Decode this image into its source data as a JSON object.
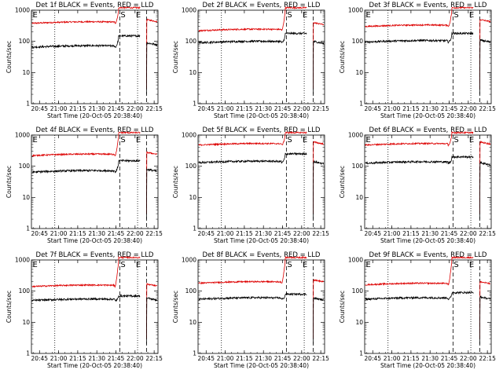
{
  "figure": {
    "rows": 3,
    "cols": 3
  },
  "chart_data": [
    {
      "type": "line",
      "title": "Det 1f BLACK = Events, RED = LLD",
      "xlabel": "Start Time (20-Oct-05 20:38:40)",
      "ylabel": "Counts/sec",
      "yscale": "log",
      "ylim": [
        1,
        1000
      ],
      "y_ticks": [
        "1",
        "10",
        "100",
        "1000"
      ],
      "x_ticks": [
        "20:45",
        "21:00",
        "21:15",
        "21:30",
        "21:45",
        "22:00",
        "22:15"
      ],
      "x_range": [
        "20:38:40",
        "22:18:00"
      ],
      "markers": [
        {
          "label": "E",
          "time": "20:39"
        },
        {
          "label": "S",
          "time": "21:48"
        },
        {
          "label": "E",
          "time": "22:00"
        }
      ],
      "dotted_lines": [
        "20:57",
        "22:02"
      ],
      "dashed_lines": [
        "21:48",
        "22:09"
      ],
      "series": [
        {
          "color": "#dd0000",
          "level": 380,
          "rise_to": 1200,
          "after": 500
        },
        {
          "color": "#000000",
          "level": 65,
          "rise_to": 150,
          "after": 90
        }
      ]
    },
    {
      "type": "line",
      "title": "Det 2f BLACK = Events, RED = LLD",
      "xlabel": "Start Time (20-Oct-05 20:38:40)",
      "ylabel": "Counts/sec",
      "yscale": "log",
      "ylim": [
        1,
        1000
      ],
      "y_ticks": [
        "1",
        "10",
        "100",
        "1000"
      ],
      "x_ticks": [
        "20:45",
        "21:00",
        "21:15",
        "21:30",
        "21:45",
        "22:00",
        "22:15"
      ],
      "x_range": [
        "20:38:40",
        "22:18:00"
      ],
      "markers": [
        {
          "label": "S",
          "time": "21:48"
        },
        {
          "label": "E",
          "time": "22:00"
        }
      ],
      "dotted_lines": [
        "20:57",
        "22:02"
      ],
      "dashed_lines": [
        "21:48",
        "22:09"
      ],
      "series": [
        {
          "color": "#dd0000",
          "level": 220,
          "rise_to": 1200,
          "after": 400
        },
        {
          "color": "#000000",
          "level": 90,
          "rise_to": 180,
          "after": 100
        }
      ]
    },
    {
      "type": "line",
      "title": "Det 3f BLACK = Events, RED = LLD",
      "xlabel": "Start Time (20-Oct-05 20:38:40)",
      "ylabel": "Counts/sec",
      "yscale": "log",
      "ylim": [
        1,
        1000
      ],
      "y_ticks": [
        "1",
        "10",
        "100",
        "1000"
      ],
      "x_ticks": [
        "20:45",
        "21:00",
        "21:15",
        "21:30",
        "21:45",
        "22:00",
        "22:15"
      ],
      "x_range": [
        "20:38:40",
        "22:18:00"
      ],
      "markers": [
        {
          "label": "E",
          "time": "20:39"
        },
        {
          "label": "S",
          "time": "21:48"
        },
        {
          "label": "E",
          "time": "22:00"
        }
      ],
      "dotted_lines": [
        "20:57",
        "22:02"
      ],
      "dashed_lines": [
        "21:48",
        "22:09"
      ],
      "series": [
        {
          "color": "#dd0000",
          "level": 300,
          "rise_to": 1200,
          "after": 500
        },
        {
          "color": "#000000",
          "level": 95,
          "rise_to": 180,
          "after": 110
        }
      ]
    },
    {
      "type": "line",
      "title": "Det 4f BLACK = Events, RED = LLD",
      "xlabel": "Start Time (20-Oct-05 20:38:40)",
      "ylabel": "Counts/sec",
      "yscale": "log",
      "ylim": [
        1,
        1000
      ],
      "y_ticks": [
        "1",
        "10",
        "100",
        "1000"
      ],
      "x_ticks": [
        "20:45",
        "21:00",
        "21:15",
        "21:30",
        "21:45",
        "22:00",
        "22:15"
      ],
      "x_range": [
        "20:38:40",
        "22:18:00"
      ],
      "markers": [
        {
          "label": "E",
          "time": "20:39"
        },
        {
          "label": "S",
          "time": "21:48"
        },
        {
          "label": "E",
          "time": "22:00"
        }
      ],
      "dotted_lines": [
        "20:57",
        "22:02"
      ],
      "dashed_lines": [
        "21:48",
        "22:09"
      ],
      "series": [
        {
          "color": "#dd0000",
          "level": 220,
          "rise_to": 1200,
          "after": 280
        },
        {
          "color": "#000000",
          "level": 65,
          "rise_to": 150,
          "after": 80
        }
      ]
    },
    {
      "type": "line",
      "title": "Det 5f BLACK = Events, RED = LLD",
      "xlabel": "Start Time (20-Oct-05 20:38:40)",
      "ylabel": "Counts/sec",
      "yscale": "log",
      "ylim": [
        1,
        1000
      ],
      "y_ticks": [
        "1",
        "10",
        "100",
        "1000"
      ],
      "x_ticks": [
        "20:45",
        "21:00",
        "21:15",
        "21:30",
        "21:45",
        "22:00",
        "22:15"
      ],
      "x_range": [
        "20:38:40",
        "22:18:00"
      ],
      "markers": [
        {
          "label": "S",
          "time": "21:48"
        },
        {
          "label": "E",
          "time": "22:00"
        }
      ],
      "dotted_lines": [
        "20:57",
        "22:02"
      ],
      "dashed_lines": [
        "21:48",
        "22:09"
      ],
      "series": [
        {
          "color": "#dd0000",
          "level": 480,
          "rise_to": 1200,
          "after": 600
        },
        {
          "color": "#000000",
          "level": 130,
          "rise_to": 250,
          "after": 140
        }
      ]
    },
    {
      "type": "line",
      "title": "Det 6f BLACK = Events, RED = LLD",
      "xlabel": "Start Time (20-Oct-05 20:38:40)",
      "ylabel": "Counts/sec",
      "yscale": "log",
      "ylim": [
        1,
        1000
      ],
      "y_ticks": [
        "1",
        "10",
        "100",
        "1000"
      ],
      "x_ticks": [
        "20:45",
        "21:00",
        "21:15",
        "21:30",
        "21:45",
        "22:00",
        "22:15"
      ],
      "x_range": [
        "20:38:40",
        "22:18:00"
      ],
      "markers": [
        {
          "label": "E",
          "time": "20:39"
        },
        {
          "label": "S",
          "time": "21:48"
        },
        {
          "label": "E",
          "time": "22:00"
        }
      ],
      "dotted_lines": [
        "20:57",
        "22:02"
      ],
      "dashed_lines": [
        "21:48",
        "22:09"
      ],
      "series": [
        {
          "color": "#dd0000",
          "level": 480,
          "rise_to": 1200,
          "after": 600
        },
        {
          "color": "#000000",
          "level": 125,
          "rise_to": 200,
          "after": 130
        }
      ]
    },
    {
      "type": "line",
      "title": "Det 7f BLACK = Events, RED = LLD",
      "xlabel": "Start Time (20-Oct-05 20:38:40)",
      "ylabel": "Counts/sec",
      "yscale": "log",
      "ylim": [
        1,
        1000
      ],
      "y_ticks": [
        "1",
        "10",
        "100",
        "1000"
      ],
      "x_ticks": [
        "20:45",
        "21:00",
        "21:15",
        "21:30",
        "21:45",
        "22:00",
        "22:15"
      ],
      "x_range": [
        "20:38:40",
        "22:18:00"
      ],
      "markers": [
        {
          "label": "E",
          "time": "20:39"
        },
        {
          "label": "S",
          "time": "21:48"
        },
        {
          "label": "E",
          "time": "22:00"
        }
      ],
      "dotted_lines": [
        "20:57",
        "22:02"
      ],
      "dashed_lines": [
        "21:48",
        "22:09"
      ],
      "series": [
        {
          "color": "#dd0000",
          "level": 140,
          "rise_to": 1200,
          "after": 170
        },
        {
          "color": "#000000",
          "level": 50,
          "rise_to": 70,
          "after": 60
        }
      ]
    },
    {
      "type": "line",
      "title": "Det 8f BLACK = Events, RED = LLD",
      "xlabel": "Start Time (20-Oct-05 20:38:40)",
      "ylabel": "Counts/sec",
      "yscale": "log",
      "ylim": [
        1,
        1000
      ],
      "y_ticks": [
        "1",
        "10",
        "100",
        "1000"
      ],
      "x_ticks": [
        "20:45",
        "21:00",
        "21:15",
        "21:30",
        "21:45",
        "22:00",
        "22:15"
      ],
      "x_range": [
        "20:38:40",
        "22:18:00"
      ],
      "markers": [
        {
          "label": "S",
          "time": "21:48"
        },
        {
          "label": "E",
          "time": "22:00"
        }
      ],
      "dotted_lines": [
        "20:57",
        "22:02"
      ],
      "dashed_lines": [
        "21:48",
        "22:09"
      ],
      "series": [
        {
          "color": "#dd0000",
          "level": 180,
          "rise_to": 1200,
          "after": 230
        },
        {
          "color": "#000000",
          "level": 55,
          "rise_to": 80,
          "after": 60
        }
      ]
    },
    {
      "type": "line",
      "title": "Det 9f BLACK = Events, RED = LLD",
      "xlabel": "Start Time (20-Oct-05 20:38:40)",
      "ylabel": "Counts/sec",
      "yscale": "log",
      "ylim": [
        1,
        1000
      ],
      "y_ticks": [
        "1",
        "10",
        "100",
        "1000"
      ],
      "x_ticks": [
        "20:45",
        "21:00",
        "21:15",
        "21:30",
        "21:45",
        "22:00",
        "22:15"
      ],
      "x_range": [
        "20:38:40",
        "22:18:00"
      ],
      "markers": [
        {
          "label": "E",
          "time": "20:39"
        },
        {
          "label": "S",
          "time": "21:48"
        },
        {
          "label": "E",
          "time": "22:00"
        }
      ],
      "dotted_lines": [
        "20:57",
        "22:02"
      ],
      "dashed_lines": [
        "21:48",
        "22:09"
      ],
      "series": [
        {
          "color": "#dd0000",
          "level": 160,
          "rise_to": 1200,
          "after": 200
        },
        {
          "color": "#000000",
          "level": 55,
          "rise_to": 90,
          "after": 65
        }
      ]
    }
  ]
}
